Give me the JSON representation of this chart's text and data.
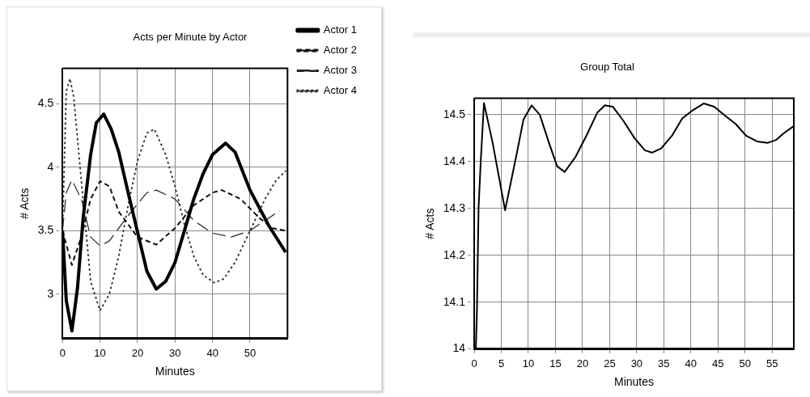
{
  "chart_data": [
    {
      "type": "line",
      "title": "Acts per Minute by Actor",
      "xlabel": "Minutes",
      "ylabel": "# Acts",
      "xlim": [
        0,
        60
      ],
      "xticks": [
        0,
        10,
        20,
        30,
        40,
        50
      ],
      "ylim": [
        2.65,
        4.78
      ],
      "yticks": [
        3,
        3.5,
        4,
        4.5
      ],
      "grid": true,
      "legend": "right",
      "marker": "none",
      "series": [
        {
          "name": "Actor 1",
          "color": "#000000",
          "line_style": "solid",
          "x": [
            0,
            1,
            2.5,
            4,
            5.5,
            7.5,
            9,
            11,
            13,
            15,
            17.5,
            20,
            22.5,
            25,
            27.5,
            30,
            32.5,
            35,
            37.5,
            40,
            43.5,
            46,
            50,
            55,
            59.5
          ],
          "values": [
            3.5,
            2.95,
            2.71,
            3.05,
            3.6,
            4.1,
            4.35,
            4.42,
            4.3,
            4.12,
            3.8,
            3.49,
            3.18,
            3.04,
            3.1,
            3.25,
            3.5,
            3.75,
            3.95,
            4.1,
            4.19,
            4.12,
            3.82,
            3.54,
            3.33
          ]
        },
        {
          "name": "Actor 2",
          "color": "#111111",
          "line_style": "dashed",
          "x": [
            0,
            2.5,
            5,
            7.5,
            10,
            12.5,
            15,
            20,
            25,
            30,
            35,
            40,
            42.5,
            47.5,
            52.5,
            56,
            59.5
          ],
          "values": [
            3.5,
            3.23,
            3.45,
            3.75,
            3.89,
            3.85,
            3.65,
            3.45,
            3.39,
            3.52,
            3.7,
            3.8,
            3.82,
            3.75,
            3.6,
            3.52,
            3.5
          ]
        },
        {
          "name": "Actor 3",
          "color": "#222222",
          "line_style": "dashed",
          "x": [
            0,
            1,
            2.5,
            5,
            7.5,
            10,
            12.5,
            17.5,
            22.5,
            25,
            30,
            35,
            40,
            45,
            50,
            55,
            58
          ],
          "values": [
            3.5,
            3.8,
            3.9,
            3.75,
            3.45,
            3.38,
            3.42,
            3.62,
            3.8,
            3.82,
            3.75,
            3.58,
            3.48,
            3.45,
            3.5,
            3.6,
            3.66
          ]
        },
        {
          "name": "Actor 4",
          "color": "#333333",
          "line_style": "dotted",
          "x": [
            0,
            1,
            2,
            3,
            5,
            7.5,
            10,
            12.5,
            15,
            17.5,
            20,
            22.5,
            24.5,
            27.5,
            30,
            32.5,
            35,
            37.5,
            40.5,
            43,
            46,
            50,
            54,
            57,
            59.5
          ],
          "values": [
            3.5,
            4.6,
            4.7,
            4.55,
            3.9,
            3.1,
            2.87,
            3.0,
            3.3,
            3.7,
            4.05,
            4.27,
            4.3,
            4.1,
            3.85,
            3.55,
            3.3,
            3.15,
            3.09,
            3.12,
            3.25,
            3.5,
            3.75,
            3.9,
            3.97
          ]
        }
      ]
    },
    {
      "type": "line",
      "title": "Group Total",
      "xlabel": "Minutes",
      "ylabel": "# Acts",
      "xlim": [
        0,
        59
      ],
      "xticks": [
        0,
        5,
        10,
        15,
        20,
        25,
        30,
        35,
        40,
        45,
        50,
        55
      ],
      "ylim": [
        14,
        14.535
      ],
      "yticks": [
        14,
        14.1,
        14.2,
        14.3,
        14.4,
        14.5
      ],
      "grid": true,
      "legend": false,
      "marker": "none",
      "series": [
        {
          "color": "#000000",
          "line_style": "solid",
          "x": [
            0,
            0.3,
            0.5,
            0.8,
            1.2,
            1.8,
            3.4,
            5.7,
            7.9,
            9.1,
            10.6,
            12.1,
            13.8,
            15.3,
            16.7,
            18.7,
            20.7,
            22.7,
            24.1,
            25.6,
            27.6,
            29.6,
            31.5,
            32.8,
            34.5,
            36.5,
            38.4,
            40.4,
            42.4,
            44.3,
            46.3,
            48.3,
            50.2,
            52.2,
            54.2,
            55.7,
            57.1,
            58.9
          ],
          "values": [
            14,
            14,
            14.08,
            14.3,
            14.4,
            14.525,
            14.44,
            14.296,
            14.42,
            14.49,
            14.52,
            14.5,
            14.44,
            14.39,
            14.378,
            14.41,
            14.455,
            14.504,
            14.52,
            14.517,
            14.486,
            14.45,
            14.424,
            14.419,
            14.428,
            14.455,
            14.492,
            14.51,
            14.524,
            14.517,
            14.498,
            14.48,
            14.455,
            14.443,
            14.44,
            14.446,
            14.46,
            14.475
          ]
        }
      ]
    }
  ]
}
